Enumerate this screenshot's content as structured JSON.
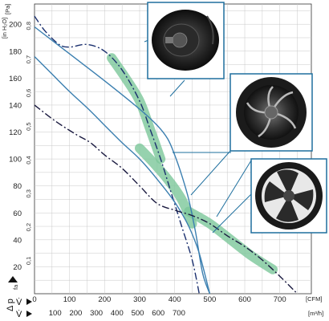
{
  "chart_data": {
    "type": "line",
    "axes": {
      "pressure_label": "Δ p",
      "pressure_sub": "fa",
      "pressure_unit": "[Pa]",
      "inh2o_unit": "[in H₂O]",
      "flow_label": "V̇",
      "cfm_unit": "[CFM]",
      "m3h_unit": "[m³/h]",
      "pa_ticks": [
        "20",
        "40",
        "60",
        "80",
        "100",
        "120",
        "140",
        "160",
        "180",
        "200"
      ],
      "pa_range": [
        0,
        215
      ],
      "inh2o_ticks": [
        "0,1",
        "0,2",
        "0,3",
        "0,4",
        "0,5",
        "0,6",
        "0,7",
        "0,8"
      ],
      "cfm_ticks": [
        "0",
        "100",
        "200",
        "300",
        "400",
        "500",
        "600",
        "700"
      ],
      "m3h_ticks": [
        "100",
        "200",
        "300",
        "400",
        "500",
        "600",
        "700"
      ],
      "cfm_range": [
        0,
        790
      ],
      "grid": true
    },
    "series": [
      {
        "color": "#1a2f6e",
        "dashed": true,
        "points": [
          [
            0,
            206
          ],
          [
            30,
            195
          ],
          [
            70,
            185
          ],
          [
            100,
            183
          ],
          [
            150,
            185
          ],
          [
            200,
            180
          ],
          [
            250,
            166
          ],
          [
            300,
            143
          ],
          [
            330,
            122
          ],
          [
            360,
            100
          ],
          [
            390,
            75
          ],
          [
            420,
            50
          ],
          [
            450,
            25
          ],
          [
            470,
            0
          ]
        ]
      },
      {
        "color": "#3b7fb0",
        "dashed": false,
        "points": [
          [
            0,
            176
          ],
          [
            50,
            163
          ],
          [
            100,
            150
          ],
          [
            150,
            138
          ],
          [
            200,
            125
          ],
          [
            250,
            112
          ],
          [
            300,
            100
          ],
          [
            350,
            85
          ],
          [
            400,
            68
          ],
          [
            440,
            50
          ],
          [
            470,
            30
          ],
          [
            500,
            0
          ]
        ]
      },
      {
        "color": "#3b7fb0",
        "dashed": false,
        "points": [
          [
            0,
            198
          ],
          [
            100,
            178
          ],
          [
            200,
            158
          ],
          [
            300,
            137
          ],
          [
            350,
            125
          ],
          [
            380,
            115
          ],
          [
            400,
            103
          ],
          [
            420,
            88
          ],
          [
            440,
            70
          ],
          [
            460,
            45
          ],
          [
            480,
            15
          ],
          [
            500,
            0
          ]
        ]
      },
      {
        "color": "#1a1a40",
        "dashed": true,
        "points": [
          [
            0,
            140
          ],
          [
            60,
            128
          ],
          [
            120,
            118
          ],
          [
            160,
            112
          ],
          [
            200,
            103
          ],
          [
            250,
            93
          ],
          [
            300,
            80
          ],
          [
            350,
            67
          ],
          [
            400,
            62
          ],
          [
            450,
            58
          ],
          [
            500,
            52
          ],
          [
            550,
            43
          ],
          [
            600,
            35
          ],
          [
            650,
            25
          ],
          [
            700,
            13
          ],
          [
            750,
            0
          ]
        ]
      }
    ],
    "highlight_bands": [
      {
        "points": [
          [
            220,
            175
          ],
          [
            260,
            160
          ],
          [
            300,
            143
          ],
          [
            330,
            122
          ],
          [
            360,
            100
          ]
        ]
      },
      {
        "points": [
          [
            300,
            108
          ],
          [
            340,
            97
          ],
          [
            380,
            85
          ],
          [
            420,
            70
          ],
          [
            450,
            52
          ]
        ]
      },
      {
        "points": [
          [
            440,
            61
          ],
          [
            500,
            52
          ],
          [
            560,
            40
          ],
          [
            620,
            28
          ],
          [
            680,
            18
          ]
        ]
      }
    ],
    "images": [
      {
        "name": "backward-curved-impeller-photo"
      },
      {
        "name": "backward-curved-fan-in-housing-photo"
      },
      {
        "name": "axial-fan-with-guard-photo"
      }
    ]
  }
}
